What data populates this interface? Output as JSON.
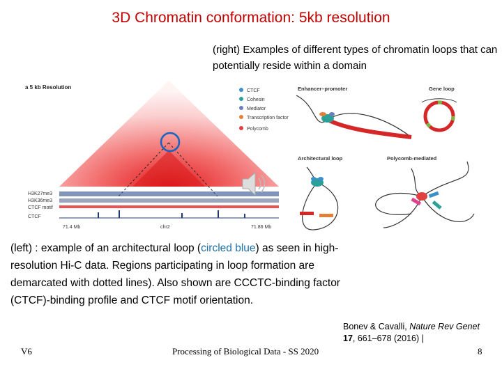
{
  "slide": {
    "title": "3D Chromatin conformation: 5kb resolution",
    "subtitle": "(right) Examples of different types of chromatin loops that can potentially reside within a domain",
    "caption": {
      "part1": "(left) : example of an architectural loop (",
      "highlight": "circled blue",
      "part2": ") as seen in high-resolution Hi-C data. Regions participating in loop formation are demarcated with dotted lines). Also shown are  CCCTC-binding factor (CTCF)-binding profile and CTCF motif orientation."
    },
    "citation": {
      "authors": "Bonev & Cavalli, ",
      "journal": "Nature Rev Genet",
      "volume": "17",
      "pages": ", 661–678 (2016) |"
    },
    "footer": {
      "left": "V6",
      "center": "Processing of Biological Data - SS 2020",
      "page": "8"
    }
  },
  "figure": {
    "panel_title": "a  5 kb Resolution",
    "track_labels": [
      "H3K27me3",
      "H3K36me3",
      "CTCF motif",
      "CTCF"
    ],
    "coordinates": {
      "start": "71.4 Mb",
      "chrom": "chr2",
      "end": "71.86 Mb"
    },
    "legend": [
      "CTCF",
      "Cohesin",
      "Mediator",
      "Transcription factor",
      "Polycomb"
    ],
    "legend_colors": [
      "#3d8fc8",
      "#2aa198",
      "#6c7fb8",
      "#e0803a",
      "#e04040"
    ],
    "loop_types": [
      "Enhancer–promoter",
      "Gene loop",
      "Architectural loop",
      "Polycomb-mediated"
    ]
  }
}
